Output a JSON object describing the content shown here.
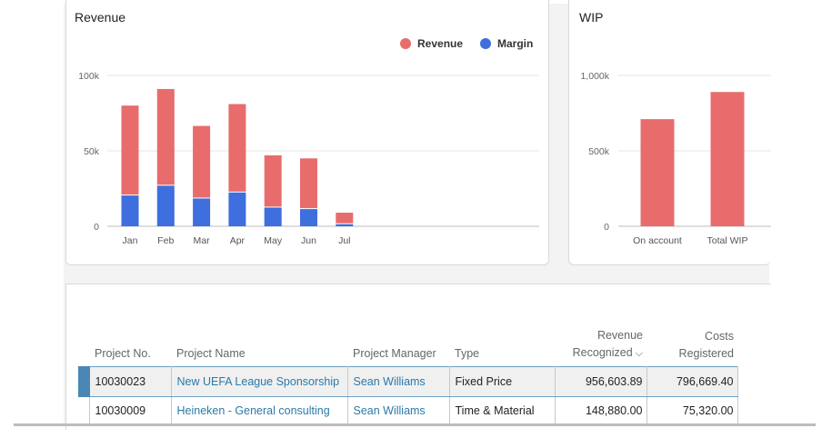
{
  "revenue_card": {
    "title": "Revenue",
    "legend": [
      {
        "label": "Revenue",
        "color": "#e86c6c"
      },
      {
        "label": "Margin",
        "color": "#3f6ede"
      }
    ]
  },
  "wip_card": {
    "title": "WIP"
  },
  "chart_data": [
    {
      "type": "bar",
      "stacked": true,
      "title": "Revenue",
      "categories": [
        "Jan",
        "Feb",
        "Mar",
        "Apr",
        "May",
        "Jun",
        "Jul"
      ],
      "series": [
        {
          "name": "Margin",
          "color": "#3f6ede",
          "values": [
            21000,
            27500,
            19000,
            23000,
            13000,
            12000,
            2000
          ]
        },
        {
          "name": "Revenue",
          "color": "#e86c6c",
          "values": [
            80000,
            91000,
            66500,
            81000,
            47000,
            45000,
            9000
          ]
        }
      ],
      "y_ticks": [
        "0",
        "50k",
        "100k"
      ],
      "ylim": [
        0,
        100000
      ],
      "legend": "top-right"
    },
    {
      "type": "bar",
      "title": "WIP",
      "categories": [
        "On account",
        "Total WIP"
      ],
      "series": [
        {
          "name": "WIP",
          "color": "#e86c6c",
          "values": [
            710000,
            890000
          ]
        }
      ],
      "y_ticks": [
        "0",
        "500k",
        "1,000k"
      ],
      "ylim": [
        0,
        1000000
      ]
    }
  ],
  "table": {
    "headers": {
      "project_no": "Project No.",
      "project_name": "Project Name",
      "project_manager": "Project Manager",
      "type": "Type",
      "revenue_line1": "Revenue",
      "revenue_line2": "Recognized",
      "costs_line1": "Costs",
      "costs_line2": "Registered"
    },
    "rows": [
      {
        "project_no": "10030023",
        "project_name": "New UEFA League Sponsorship",
        "project_manager": "Sean Williams",
        "type": "Fixed Price",
        "revenue": "956,603.89",
        "costs": "796,669.40"
      },
      {
        "project_no": "10030009",
        "project_name": "Heineken - General consulting",
        "project_manager": "Sean Williams",
        "type": "Time & Material",
        "revenue": "148,880.00",
        "costs": "75,320.00"
      }
    ]
  }
}
